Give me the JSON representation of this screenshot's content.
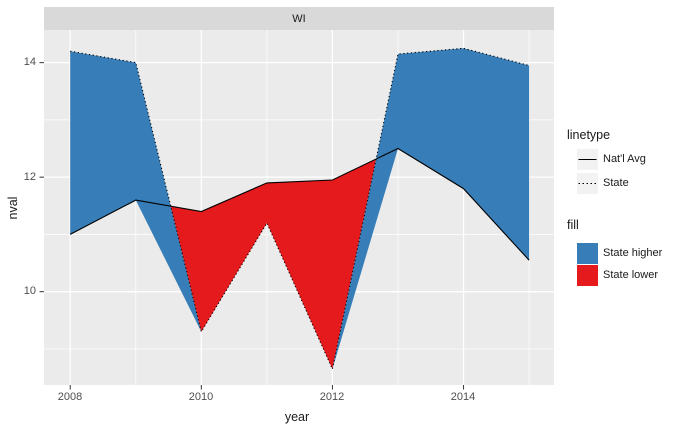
{
  "strip": {
    "label": "WI"
  },
  "legend": {
    "linetype_title": "linetype",
    "fill_title": "fill"
  },
  "colors": {
    "background": "#FFFFFF",
    "panel_bg": "#EBEBEB",
    "strip_bg": "#D9D9D9",
    "grid": "#FFFFFF",
    "line": "#000000",
    "tick": "#333333",
    "axis_text": "#4D4D4D",
    "text": "#1A1A1A",
    "legend_key_bg": "#F2F2F2"
  },
  "chart_data": {
    "type": "area",
    "facet": "WI",
    "xlabel": "year",
    "ylabel": "nval",
    "x": [
      2008,
      2009,
      2010,
      2011,
      2012,
      2013,
      2014,
      2015
    ],
    "series": [
      {
        "name": "Nat'l Avg",
        "linetype": "solid",
        "values": [
          11.0,
          11.6,
          11.4,
          11.9,
          11.95,
          12.5,
          11.8,
          10.55
        ]
      },
      {
        "name": "State",
        "linetype": "dotted",
        "values": [
          14.2,
          14.0,
          9.3,
          11.2,
          8.65,
          14.15,
          14.25,
          13.95
        ]
      }
    ],
    "ribbon": {
      "higher_label": "State higher",
      "higher_color": "#377EB8",
      "lower_label": "State lower",
      "lower_color": "#E41A1C"
    },
    "x_ticks": [
      2008,
      2010,
      2012,
      2014
    ],
    "x_minor_ticks": [
      2009,
      2011,
      2013,
      2015
    ],
    "y_ticks": [
      10,
      12,
      14
    ],
    "y_minor_ticks": [
      9,
      11,
      13
    ],
    "xlim": [
      2007.6,
      2015.38
    ],
    "ylim": [
      8.37,
      14.57
    ],
    "grid": true,
    "legend_position": "right"
  }
}
